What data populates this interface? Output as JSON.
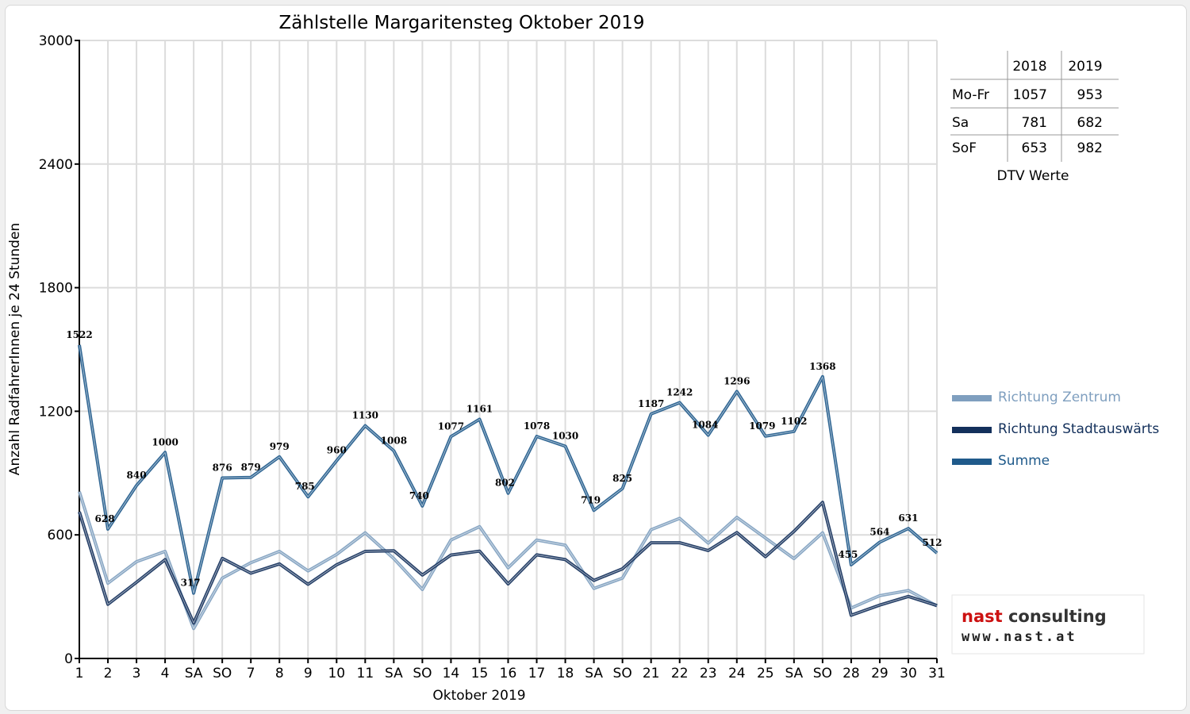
{
  "chart_data": {
    "type": "line",
    "title": "Zählstelle Margaritensteg Oktober 2019",
    "xlabel": "Oktober 2019",
    "ylabel": "Anzahl RadfahrerInnen je 24 Stunden",
    "ylim": [
      0,
      3000
    ],
    "yticks": [
      "0",
      "600",
      "1200",
      "1800",
      "2400",
      "3000"
    ],
    "grid": true,
    "legend_position": "right",
    "categories": [
      "1",
      "2",
      "3",
      "4",
      "SA",
      "SO",
      "7",
      "8",
      "9",
      "10",
      "11",
      "SA",
      "SO",
      "14",
      "15",
      "16",
      "17",
      "18",
      "SA",
      "SO",
      "21",
      "22",
      "23",
      "24",
      "25",
      "SA",
      "SO",
      "28",
      "29",
      "30",
      "31"
    ],
    "weekend_label_color": "#e00000",
    "weekday_label_color": "#000000",
    "highlight_categories": [
      "SO"
    ],
    "series": [
      {
        "name": "Richtung Zentrum",
        "color": "#7f9fbf",
        "values": [
          810,
          365,
          470,
          520,
          145,
          390,
          465,
          520,
          425,
          505,
          610,
          485,
          335,
          575,
          640,
          440,
          575,
          550,
          340,
          390,
          625,
          680,
          560,
          685,
          585,
          485,
          610,
          245,
          305,
          330,
          255
        ]
      },
      {
        "name": "Richtung Stadtauswärts",
        "color": "#13305b",
        "values": [
          712,
          263,
          370,
          480,
          172,
          486,
          414,
          459,
          360,
          455,
          520,
          523,
          405,
          502,
          521,
          362,
          503,
          480,
          379,
          435,
          562,
          562,
          524,
          611,
          494,
          617,
          758,
          210,
          259,
          301,
          257
        ]
      },
      {
        "name": "Summe",
        "color": "#1f5a8b",
        "values": [
          1522,
          628,
          840,
          1000,
          317,
          876,
          879,
          979,
          785,
          960,
          1130,
          1008,
          740,
          1077,
          1161,
          802,
          1078,
          1030,
          719,
          825,
          1187,
          1242,
          1084,
          1296,
          1079,
          1102,
          1368,
          455,
          564,
          631,
          512
        ]
      }
    ],
    "data_labels_series": "Summe"
  },
  "dtv_table": {
    "headers": [
      "",
      "2018",
      "2019"
    ],
    "rows": [
      {
        "label": "Mo-Fr",
        "v2018": "1057",
        "v2019": "953"
      },
      {
        "label": "Sa",
        "v2018": "781",
        "v2019": "682"
      },
      {
        "label": "SoF",
        "v2018": "653",
        "v2019": "982"
      }
    ],
    "caption": "DTV Werte"
  },
  "logo": {
    "name_part1": "nast",
    "name_part2": " consulting",
    "url": "www.nast.at",
    "color_part1": "#cc1111",
    "color_part2": "#333333"
  }
}
